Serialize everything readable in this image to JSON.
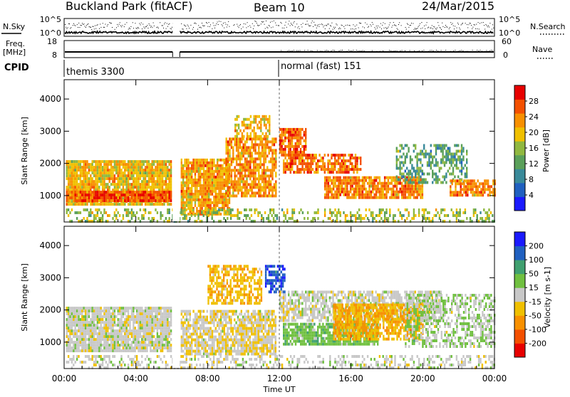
{
  "header": {
    "station": "Buckland Park (fitACF)",
    "beam": "Beam 10",
    "date": "24/Mar/2015"
  },
  "noise_panel": {
    "left_label": "N.Sky",
    "right_label": "N.Search",
    "left_ticks": [
      "10^5",
      "10^0"
    ],
    "right_ticks": [
      "10^5",
      "10^0"
    ]
  },
  "freq_panel": {
    "label_line1": "Freq.",
    "label_line2": "[MHz]",
    "left_ticks": [
      "18",
      "8"
    ],
    "right_ticks": [
      "60",
      "0"
    ],
    "right_label": "Nave"
  },
  "cpid": {
    "label": "CPID",
    "modes": [
      {
        "text": "themis 3300",
        "start": 0
      },
      {
        "text": "normal (fast) 151",
        "start": 12
      }
    ]
  },
  "chart_data": [
    {
      "type": "heatmap",
      "name": "power",
      "ylabel": "Slant Range [km]",
      "xlabel": "Time UT",
      "x_ticks": [
        "00:00",
        "04:00",
        "08:00",
        "12:00",
        "16:00",
        "20:00",
        "00:00"
      ],
      "y_ticks": [
        "1000",
        "2000",
        "3000",
        "4000"
      ],
      "xlim": [
        0,
        24
      ],
      "ylim": [
        180,
        4600
      ],
      "colorbar": {
        "label": "Power [dB]",
        "ticks": [
          "4",
          "8",
          "12",
          "16",
          "20",
          "24",
          "28"
        ],
        "range": [
          0,
          32
        ],
        "colors": [
          "#1a1aff",
          "#2060c0",
          "#3a8a9a",
          "#5aa05a",
          "#90b840",
          "#f0c000",
          "#f89000",
          "#f45000",
          "#e80000"
        ]
      },
      "regions": [
        {
          "t0": 0.1,
          "t1": 6.0,
          "r0": 700,
          "r1": 2100,
          "mean": 20,
          "density": 0.9
        },
        {
          "t0": 0.1,
          "t1": 6.0,
          "r0": 800,
          "r1": 1150,
          "mean": 27,
          "density": 0.95
        },
        {
          "t0": 6.5,
          "t1": 9.2,
          "r0": 400,
          "r1": 2150,
          "mean": 22,
          "density": 0.9
        },
        {
          "t0": 9.0,
          "t1": 11.8,
          "r0": 1000,
          "r1": 2800,
          "mean": 23,
          "density": 0.75
        },
        {
          "t0": 9.5,
          "t1": 11.5,
          "r0": 2800,
          "r1": 3500,
          "mean": 20,
          "density": 0.5
        },
        {
          "t0": 12.0,
          "t1": 13.5,
          "r0": 2300,
          "r1": 3100,
          "mean": 26,
          "density": 0.8
        },
        {
          "t0": 12.2,
          "t1": 16.5,
          "r0": 1700,
          "r1": 2300,
          "mean": 25,
          "density": 0.7
        },
        {
          "t0": 14.5,
          "t1": 20.0,
          "r0": 900,
          "r1": 1600,
          "mean": 24,
          "density": 0.85
        },
        {
          "t0": 18.5,
          "t1": 22.5,
          "r0": 1400,
          "r1": 2600,
          "mean": 12,
          "density": 0.45
        },
        {
          "t0": 21.5,
          "t1": 24.0,
          "r0": 1000,
          "r1": 1500,
          "mean": 24,
          "density": 0.75
        },
        {
          "t0": 0.1,
          "t1": 24.0,
          "r0": 200,
          "r1": 600,
          "mean": 16,
          "density": 0.35
        }
      ]
    },
    {
      "type": "heatmap",
      "name": "velocity",
      "ylabel": "Slant Range [km]",
      "xlabel": "Time UT",
      "x_ticks": [
        "00:00",
        "04:00",
        "08:00",
        "12:00",
        "16:00",
        "20:00",
        "00:00"
      ],
      "y_ticks": [
        "1000",
        "2000",
        "3000",
        "4000"
      ],
      "xlim": [
        0,
        24
      ],
      "ylim": [
        180,
        4600
      ],
      "colorbar": {
        "label": "Velocity [m s-1]",
        "ticks": [
          "200",
          "100",
          "50",
          "15",
          "-15",
          "-50",
          "-100",
          "-200"
        ],
        "range": [
          -250,
          250
        ],
        "colors": [
          "#e80000",
          "#f45000",
          "#f89000",
          "#f0c000",
          "#c8c8c8",
          "#70c040",
          "#40a070",
          "#2060c0",
          "#1a1aff"
        ]
      },
      "regions": [
        {
          "t0": 0.1,
          "t1": 6.0,
          "r0": 700,
          "r1": 2100,
          "mean": 0,
          "density": 0.9
        },
        {
          "t0": 6.5,
          "t1": 11.8,
          "r0": 600,
          "r1": 2000,
          "mean": -20,
          "density": 0.8
        },
        {
          "t0": 8.0,
          "t1": 11.0,
          "r0": 2200,
          "r1": 3400,
          "mean": -70,
          "density": 0.6
        },
        {
          "t0": 11.2,
          "t1": 12.3,
          "r0": 2600,
          "r1": 3400,
          "mean": 180,
          "density": 0.7
        },
        {
          "t0": 12.0,
          "t1": 21.0,
          "r0": 1700,
          "r1": 2600,
          "mean": 0,
          "density": 0.7
        },
        {
          "t0": 12.2,
          "t1": 17.5,
          "r0": 900,
          "r1": 1600,
          "mean": 60,
          "density": 0.85
        },
        {
          "t0": 15.0,
          "t1": 20.0,
          "r0": 1100,
          "r1": 2200,
          "mean": -80,
          "density": 0.8
        },
        {
          "t0": 19.0,
          "t1": 24.0,
          "r0": 900,
          "r1": 2500,
          "mean": 25,
          "density": 0.5
        },
        {
          "t0": 0.1,
          "t1": 24.0,
          "r0": 200,
          "r1": 600,
          "mean": 0,
          "density": 0.35
        }
      ]
    }
  ]
}
